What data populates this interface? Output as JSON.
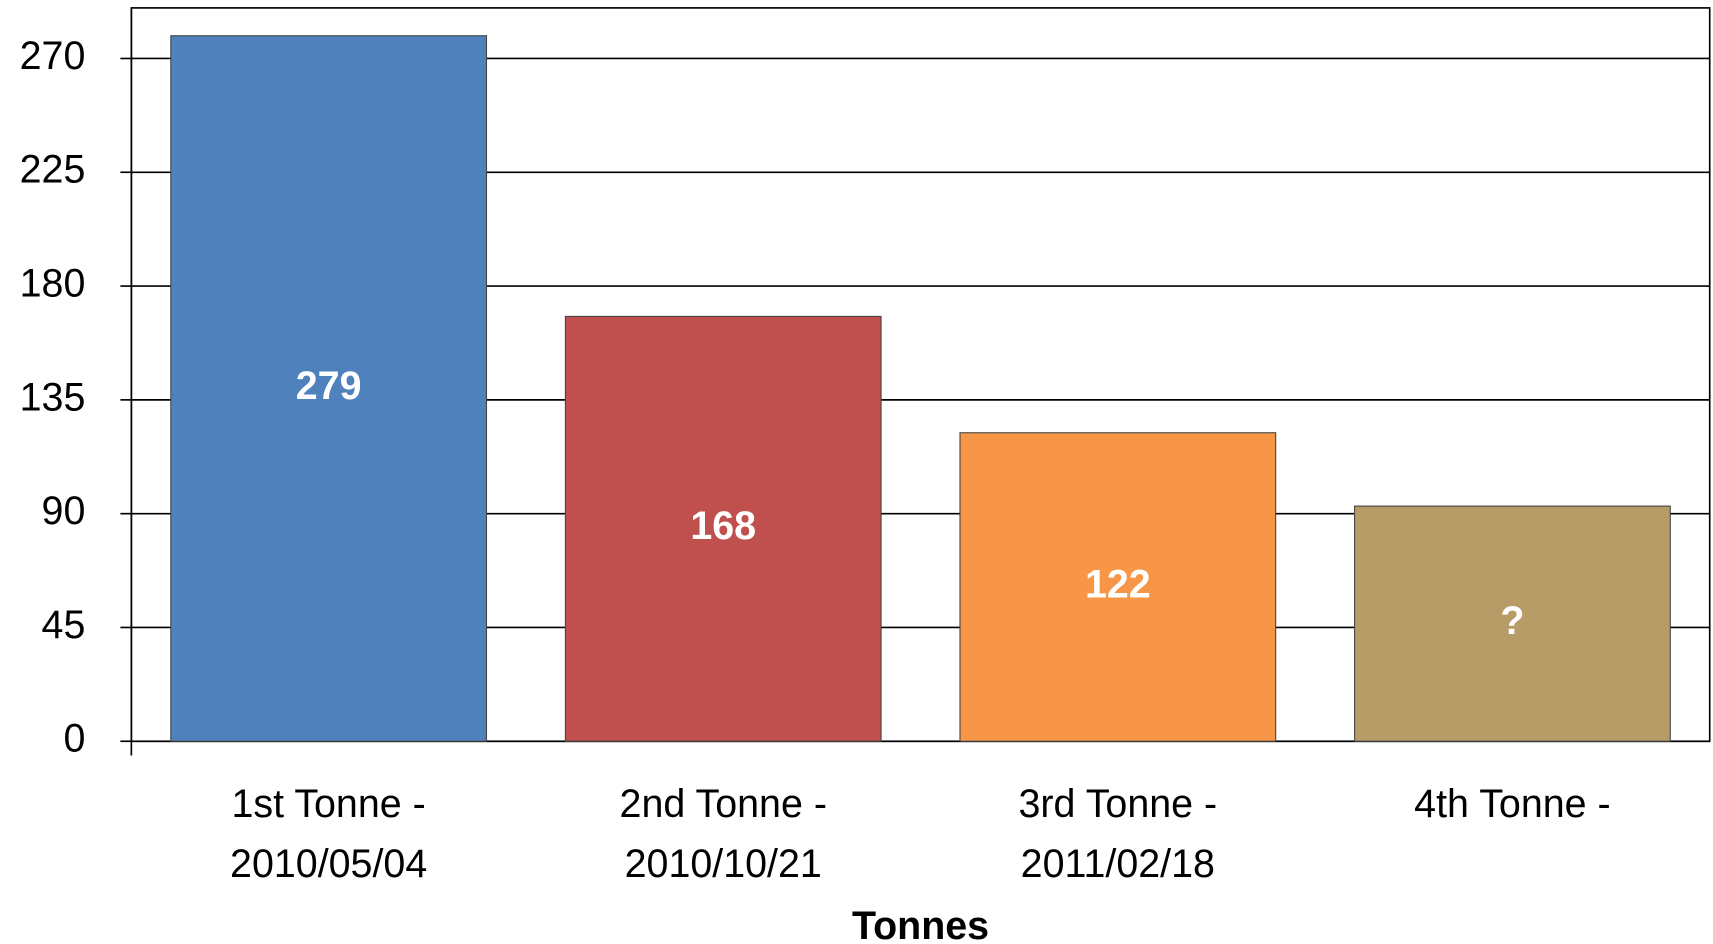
{
  "chart_data": {
    "type": "bar",
    "x_label": "Tonnes",
    "categories": [
      "1st Tonne - 2010/05/04",
      "2nd Tonne - 2010/10/21",
      "3rd Tonne - 2011/02/18",
      "4th Tonne -"
    ],
    "values": [
      279,
      168,
      122,
      93
    ],
    "value_labels": [
      "279",
      "168",
      "122",
      "?"
    ],
    "colors": [
      "#4f81bd",
      "#c0504d",
      "#f79646",
      "#b89c67"
    ],
    "ylim": [
      0,
      290
    ],
    "yticks": [
      0,
      45,
      90,
      135,
      180,
      225,
      270
    ],
    "grid": true
  }
}
